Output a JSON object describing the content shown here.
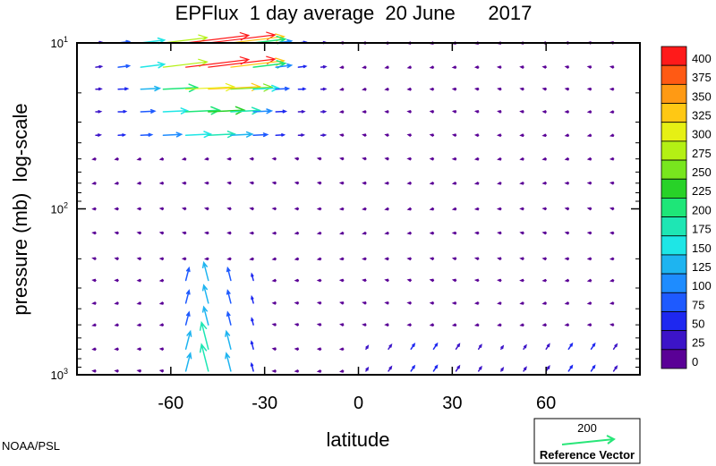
{
  "chart_data": {
    "type": "vector-field",
    "title": "EPFlux  1 day average  20 June      2017",
    "xlabel": "latitude",
    "ylabel": "pressure (mb)  log-scale",
    "xlim": [
      -90,
      90
    ],
    "ylim": [
      1000,
      10
    ],
    "y_scale": "log",
    "x_ticks": [
      "-60",
      "-30",
      "0",
      "30",
      "60"
    ],
    "x_tick_values": [
      -60,
      -30,
      0,
      30,
      60
    ],
    "y_ticks": [
      {
        "value": 10,
        "base": "10",
        "exp": "1"
      },
      {
        "value": 100,
        "base": "10",
        "exp": "2"
      },
      {
        "value": 1000,
        "base": "10",
        "exp": "3"
      }
    ],
    "colorbar": {
      "levels": [
        "400",
        "375",
        "350",
        "325",
        "300",
        "275",
        "250",
        "225",
        "200",
        "175",
        "150",
        "125",
        "100",
        "75",
        "50",
        "25",
        "0"
      ],
      "colors": [
        "#ff1a1a",
        "#ff5a14",
        "#ff9a14",
        "#ffc814",
        "#e6f014",
        "#b4f014",
        "#78e61e",
        "#28d228",
        "#1ee678",
        "#1ee6b4",
        "#1ee6e6",
        "#1eb4f0",
        "#1e8cff",
        "#1e5aff",
        "#1e28f0",
        "#3c14c8",
        "#5a0096"
      ]
    },
    "reference_vector": {
      "value": "200",
      "label": "Reference Vector",
      "color": "#28e678"
    },
    "credit": "NOAA/PSL"
  }
}
